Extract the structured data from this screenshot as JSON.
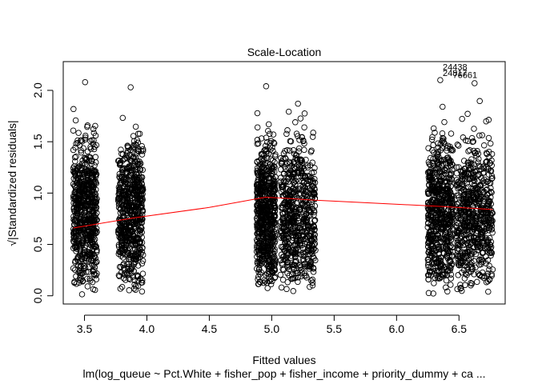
{
  "chart_data": {
    "type": "scatter",
    "title": "Scale-Location",
    "xlabel": "Fitted values",
    "ylabel": "√|Standardized residuals|",
    "caption": "lm(log_queue ~ Pct.White + fisher_pop + fisher_income + priority_dummy + ca ...",
    "xlim": [
      3.33,
      6.87
    ],
    "ylim": [
      -0.08,
      2.28
    ],
    "x_ticks": [
      3.5,
      4.0,
      4.5,
      5.0,
      5.5,
      6.0,
      6.5
    ],
    "x_tick_labels": [
      "3.5",
      "4.0",
      "4.5",
      "5.0",
      "5.5",
      "6.0",
      "6.5"
    ],
    "y_ticks": [
      0.0,
      0.5,
      1.0,
      1.5,
      2.0
    ],
    "y_tick_labels": [
      "0.0",
      "0.5",
      "1.0",
      "1.5",
      "2.0"
    ],
    "point_clusters": [
      {
        "x_min": 3.41,
        "x_max": 3.6,
        "y_max": 2.08
      },
      {
        "x_min": 3.77,
        "x_max": 3.97,
        "y_max": 2.03
      },
      {
        "x_min": 4.88,
        "x_max": 5.03,
        "y_max": 2.04
      },
      {
        "x_min": 5.07,
        "x_max": 5.35,
        "y_max": 1.87
      },
      {
        "x_min": 6.25,
        "x_max": 6.45,
        "y_max": 2.1
      },
      {
        "x_min": 6.48,
        "x_max": 6.77,
        "y_max": 2.07
      }
    ],
    "smoother_line": {
      "color": "#ff0000",
      "x": [
        3.41,
        3.9,
        4.5,
        4.95,
        5.1,
        5.35,
        6.35,
        6.77
      ],
      "y": [
        0.66,
        0.76,
        0.86,
        0.96,
        0.95,
        0.93,
        0.87,
        0.84
      ]
    },
    "outlier_labels": [
      {
        "text": "24438",
        "x": 6.37,
        "y": 2.2
      },
      {
        "text": "24817",
        "x": 6.37,
        "y": 2.14
      },
      {
        "text": "76661",
        "x": 6.45,
        "y": 2.12
      }
    ]
  }
}
